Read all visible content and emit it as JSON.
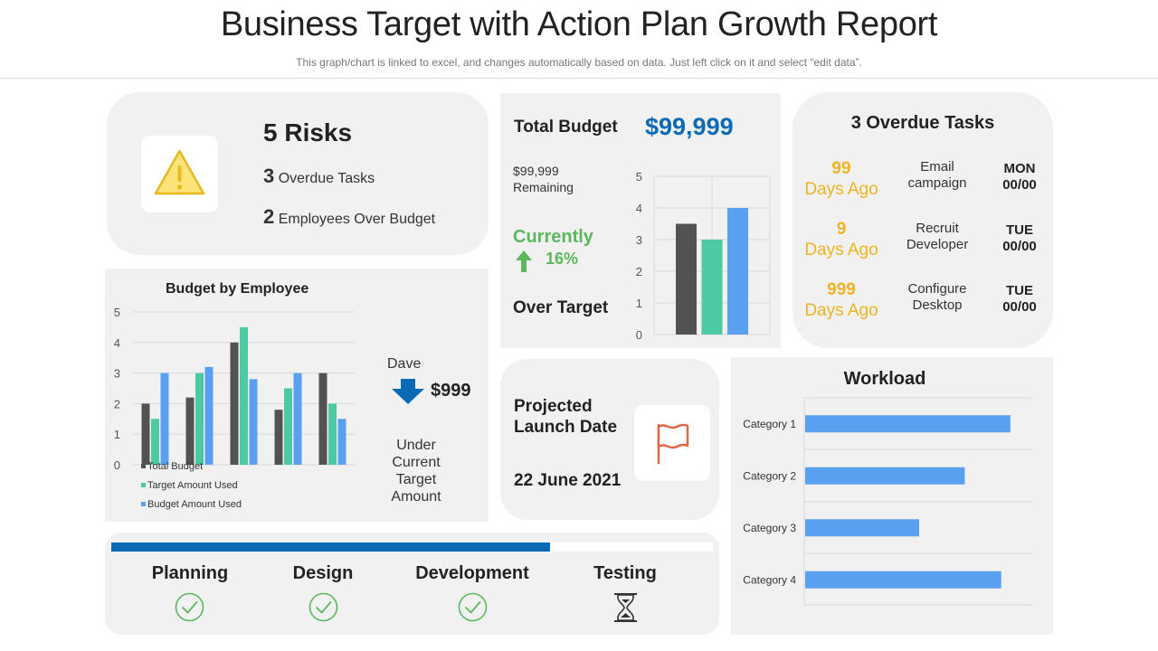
{
  "header": {
    "title": "Business Target with Action Plan Growth Report",
    "subtitle": "This graph/chart is linked to excel, and changes automatically based on data. Just left click on it and select “edit data”."
  },
  "risks": {
    "title": "5 Risks",
    "items": [
      {
        "count": "3",
        "label": "Overdue Tasks"
      },
      {
        "count": "2",
        "label": "Employees Over Budget"
      }
    ]
  },
  "budget": {
    "label": "Total Budget",
    "amount": "$99,999",
    "remaining_amount": "$99,999",
    "remaining_label": "Remaining",
    "currently_label": "Currently",
    "percent": "16%",
    "over_target": "Over Target"
  },
  "overdue": {
    "title": "3 Overdue Tasks",
    "tasks": [
      {
        "days": "99",
        "ago": "Days Ago",
        "name": [
          "Email",
          "campaign"
        ],
        "day": "MON",
        "date": "00/00"
      },
      {
        "days": "9",
        "ago": "Days Ago",
        "name": [
          "Recruit",
          "Developer"
        ],
        "day": "TUE",
        "date": "00/00"
      },
      {
        "days": "999",
        "ago": "Days Ago",
        "name": [
          "Configure",
          "Desktop"
        ],
        "day": "TUE",
        "date": "00/00"
      }
    ]
  },
  "employee_panel": {
    "name": "Dave",
    "amount": "$999",
    "note": [
      "Under Current",
      "Target Amount"
    ]
  },
  "launch": {
    "label": [
      "Projected",
      "Launch Date"
    ],
    "date": "22 June 2021"
  },
  "phases": {
    "progress": 0.73,
    "items": [
      {
        "label": "Planning",
        "status": "done"
      },
      {
        "label": "Design",
        "status": "done"
      },
      {
        "label": "Development",
        "status": "done"
      },
      {
        "label": "Testing",
        "status": "pending"
      }
    ]
  },
  "colors": {
    "dark": "#525252",
    "teal": "#4dc9a3",
    "blue": "#5aa0f0",
    "accent_blue": "#0a6ab5",
    "gold": "#f0b323",
    "green": "#5cb85c",
    "flag": "#e0664a"
  },
  "chart_data": [
    {
      "type": "bar",
      "title": "Budget by Employee",
      "categories": [
        "",
        "",
        "",
        "",
        ""
      ],
      "series": [
        {
          "name": "Total Budget",
          "values": [
            2,
            2.2,
            4,
            1.8,
            3
          ]
        },
        {
          "name": "Target Amount Used",
          "values": [
            1.5,
            3,
            4.5,
            2.5,
            2
          ]
        },
        {
          "name": "Budget Amount Used",
          "values": [
            3,
            3.2,
            2.8,
            3,
            1.5
          ]
        }
      ],
      "ylim": [
        0,
        5
      ],
      "yticks": [
        0,
        1,
        2,
        3,
        4,
        5
      ],
      "legend": "bottom-left",
      "grid": true
    },
    {
      "type": "bar",
      "title": "",
      "categories": [
        "",
        "",
        ""
      ],
      "values": [
        3.5,
        3,
        4
      ],
      "ylim": [
        0,
        5
      ],
      "yticks": [
        0,
        1,
        2,
        3,
        4,
        5
      ],
      "grid": true
    },
    {
      "type": "bar",
      "orientation": "horizontal",
      "title": "Workload",
      "categories": [
        "Category 1",
        "Category 2",
        "Category 3",
        "Category 4"
      ],
      "values": [
        4.5,
        3.5,
        2.5,
        4.3
      ],
      "xlim": [
        0,
        5
      ],
      "grid": true
    }
  ]
}
